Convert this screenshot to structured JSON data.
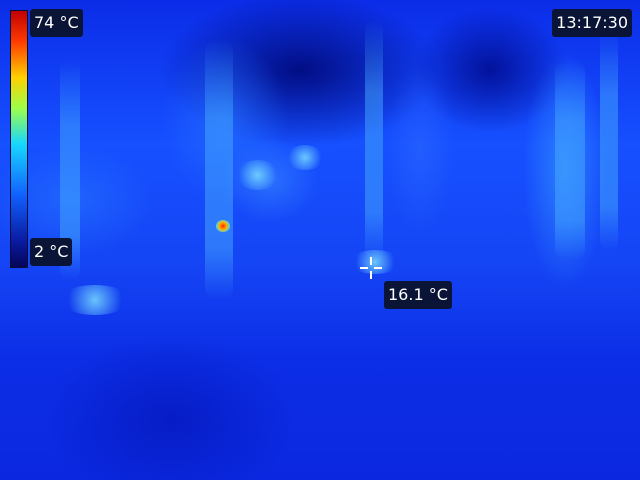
{
  "scale": {
    "max_label": "74 °C",
    "min_label": "2 °C",
    "palette": [
      "#c00000",
      "#ff3b00",
      "#ffd000",
      "#9cff4a",
      "#18d6ff",
      "#1060ff",
      "#0a1aa0",
      "#05055a"
    ]
  },
  "clock": {
    "time": "13:17:30"
  },
  "spot_meter": {
    "reading": "16.1 °C",
    "icon": "crosshair-icon"
  },
  "colors": {
    "label_bg": "#0a1436",
    "label_text": "#ffffff"
  }
}
